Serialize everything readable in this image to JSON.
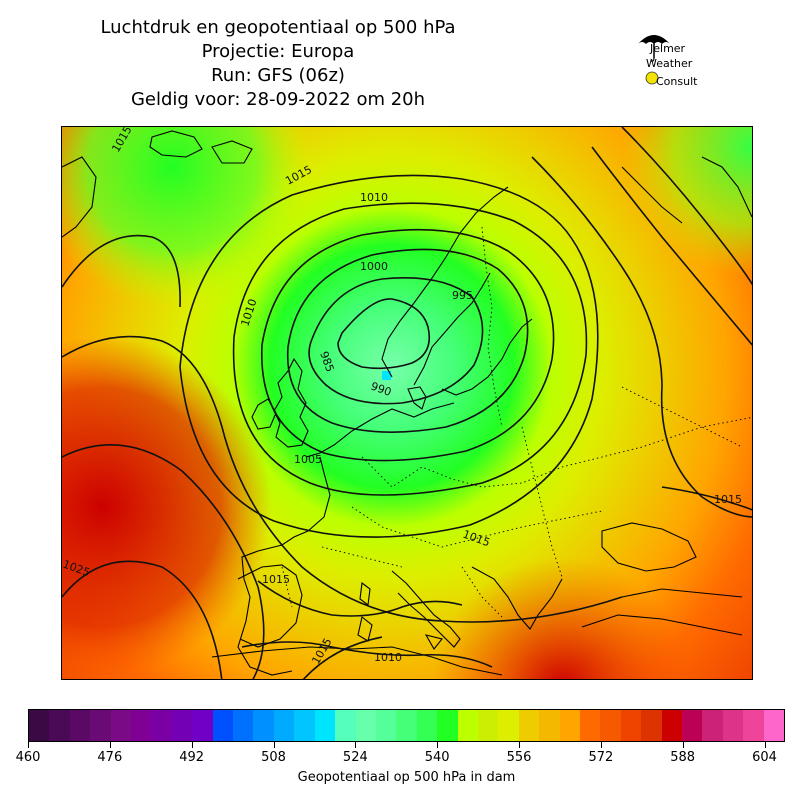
{
  "title": {
    "line1": "Luchtdruk en geopotentiaal op 500 hPa",
    "line2": "Projectie: Europa",
    "line3": "Run: GFS (06z)",
    "line4": "Geldig voor: 28-09-2022 om 20h"
  },
  "logo": {
    "line1": "Jelmer",
    "line2": "Weather",
    "line3": "Consult",
    "icon": "umbrella-icon",
    "sun_icon": "sun-icon"
  },
  "map": {
    "isobar_labels": [
      "1015",
      "1010",
      "1000",
      "995",
      "985",
      "990",
      "1005",
      "1010",
      "1015",
      "1015",
      "1025",
      "1015",
      "1010",
      "1015",
      "1015"
    ],
    "low_marker_color": "#00e5ff"
  },
  "colorbar": {
    "label": "Geopotentiaal op 500 hPa in dam",
    "ticks": [
      "460",
      "476",
      "492",
      "508",
      "524",
      "540",
      "556",
      "572",
      "588",
      "604"
    ],
    "colors": [
      "#3b0a45",
      "#4a0a55",
      "#5a0a65",
      "#6a0a75",
      "#7a0a85",
      "#800095",
      "#7a00a5",
      "#7400b5",
      "#7000c5",
      "#0050ff",
      "#0070ff",
      "#0090ff",
      "#00aaff",
      "#00c5ff",
      "#00e5ff",
      "#55ffbb",
      "#66ffaa",
      "#55ff99",
      "#44ff77",
      "#33ff55",
      "#22ff22",
      "#bbff00",
      "#ccee00",
      "#ddee00",
      "#eecc00",
      "#f5b800",
      "#ffa500",
      "#ff6a00",
      "#f55a00",
      "#ee4400",
      "#dd3300",
      "#cc0000",
      "#bb0055",
      "#cc2277",
      "#dd3388",
      "#ee4499",
      "#ff66cc"
    ]
  }
}
